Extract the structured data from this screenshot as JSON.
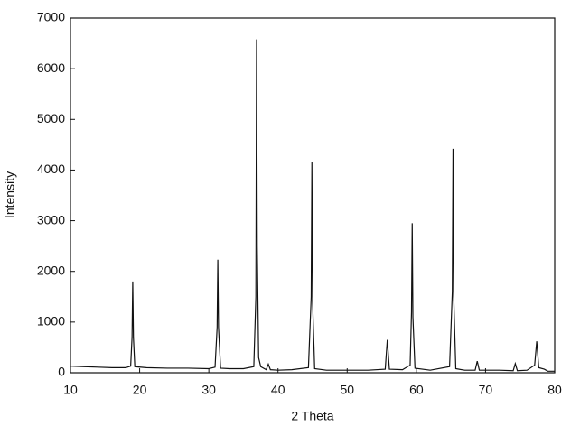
{
  "chart_data": {
    "type": "line",
    "xlabel": "2 Theta",
    "ylabel": "Intensity",
    "x": [
      10,
      12,
      14,
      16,
      18,
      18.7,
      18.9,
      19.0,
      19.1,
      19.3,
      21,
      24,
      27,
      30,
      30.9,
      31.2,
      31.3,
      31.4,
      31.7,
      33,
      35,
      36.5,
      36.8,
      36.9,
      37.0,
      37.2,
      37.5,
      38.3,
      38.6,
      38.9,
      40,
      42,
      44.4,
      44.8,
      44.9,
      45.0,
      45.3,
      47,
      50,
      53,
      55.5,
      55.8,
      56.1,
      58,
      59.1,
      59.3,
      59.4,
      59.5,
      59.8,
      62,
      64.8,
      65.2,
      65.3,
      65.4,
      65.7,
      67,
      68.5,
      68.8,
      69.1,
      72,
      74.0,
      74.3,
      74.6,
      76,
      77.1,
      77.4,
      77.7,
      78.5,
      79,
      80
    ],
    "series": [
      {
        "color": "#111111",
        "values": [
          130,
          120,
          110,
          100,
          100,
          130,
          700,
          1800,
          700,
          120,
          100,
          90,
          90,
          80,
          110,
          900,
          2230,
          900,
          90,
          80,
          80,
          120,
          1500,
          6580,
          2500,
          300,
          120,
          60,
          170,
          60,
          50,
          60,
          100,
          1500,
          4150,
          1400,
          80,
          50,
          50,
          50,
          70,
          650,
          70,
          60,
          150,
          1200,
          2950,
          1100,
          90,
          50,
          120,
          1600,
          4420,
          1500,
          80,
          50,
          50,
          230,
          50,
          50,
          40,
          180,
          40,
          50,
          150,
          620,
          100,
          70,
          30,
          30
        ]
      }
    ],
    "xlim": [
      10,
      80
    ],
    "ylim": [
      0,
      7000
    ],
    "xticks": [
      10,
      20,
      30,
      40,
      50,
      60,
      70,
      80
    ],
    "yticks": [
      0,
      1000,
      2000,
      3000,
      4000,
      5000,
      6000,
      7000
    ]
  }
}
